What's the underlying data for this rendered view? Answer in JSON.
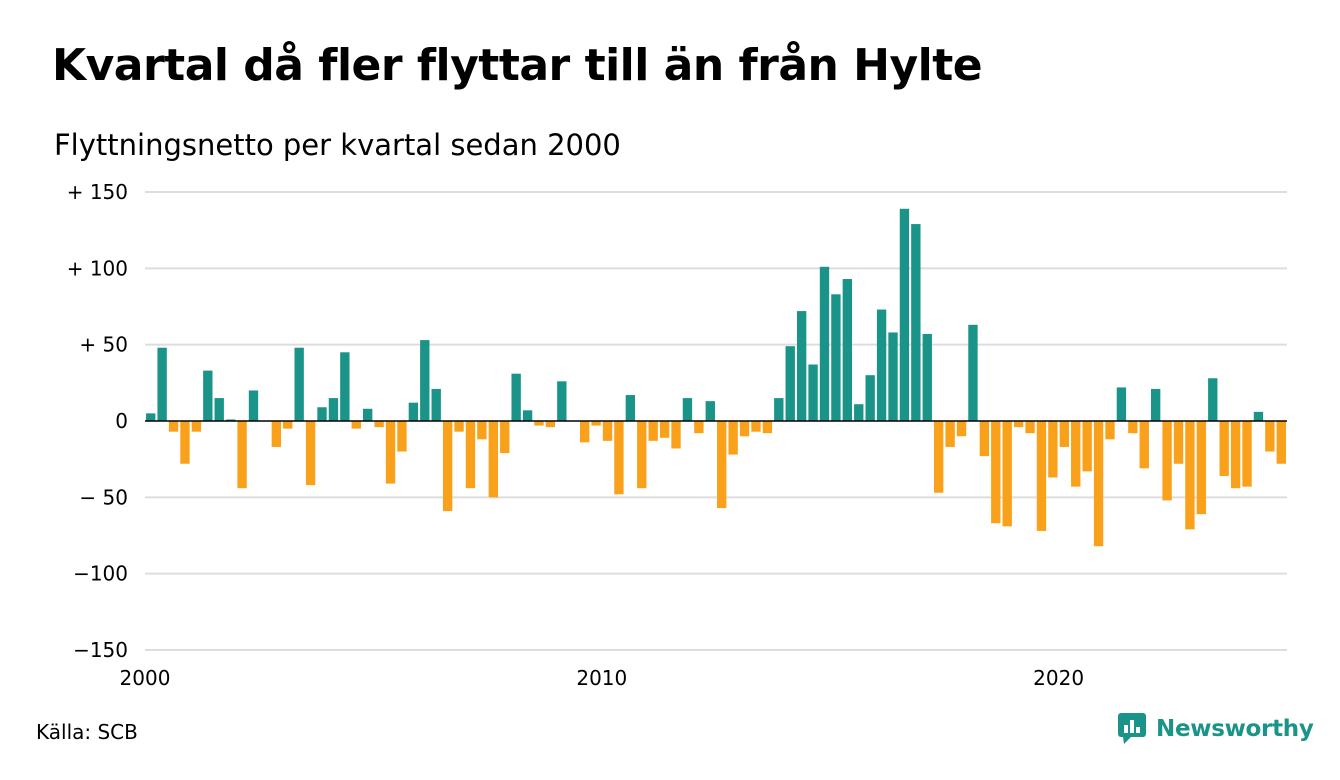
{
  "title": "Kvartal då fler flyttar till än från Hylte",
  "subtitle": "Flyttningsnetto per kvartal sedan 2000",
  "source": "Källa: SCB",
  "brand": "Newsworthy",
  "colors": {
    "positive": "#1a9488",
    "negative": "#f9a11b",
    "grid": "#dddddd",
    "brand": "#1a9488"
  },
  "chart_data": {
    "type": "bar",
    "start_year": 2000,
    "x_ticks": [
      "2000",
      "2010",
      "2020"
    ],
    "y_ticks": [
      {
        "value": 150,
        "label": "+ 150"
      },
      {
        "value": 100,
        "label": "+ 100"
      },
      {
        "value": 50,
        "label": "+  50"
      },
      {
        "value": 0,
        "label": "0"
      },
      {
        "value": -50,
        "label": "− 50"
      },
      {
        "value": -100,
        "label": "−100"
      },
      {
        "value": -150,
        "label": "−150"
      }
    ],
    "ylim": [
      -150,
      150
    ],
    "grid": true,
    "values": [
      5,
      48,
      -7,
      -28,
      -7,
      33,
      15,
      1,
      -44,
      20,
      0,
      -17,
      -5,
      48,
      -42,
      9,
      15,
      45,
      -5,
      8,
      -4,
      -41,
      -20,
      12,
      53,
      21,
      -59,
      -7,
      -44,
      -12,
      -50,
      -21,
      31,
      7,
      -3,
      -4,
      26,
      0,
      -14,
      -3,
      -13,
      -48,
      17,
      -44,
      -13,
      -11,
      -18,
      15,
      -8,
      13,
      -57,
      -22,
      -10,
      -7,
      -8,
      15,
      49,
      72,
      37,
      101,
      83,
      93,
      11,
      30,
      73,
      58,
      139,
      129,
      57,
      -47,
      -17,
      -10,
      63,
      -23,
      -67,
      -69,
      -4,
      -8,
      -72,
      -37,
      -17,
      -43,
      -33,
      -82,
      -12,
      22,
      -8,
      -31,
      21,
      -52,
      -28,
      -71,
      -61,
      28,
      -36,
      -44,
      -43,
      6,
      -20,
      -28
    ]
  }
}
